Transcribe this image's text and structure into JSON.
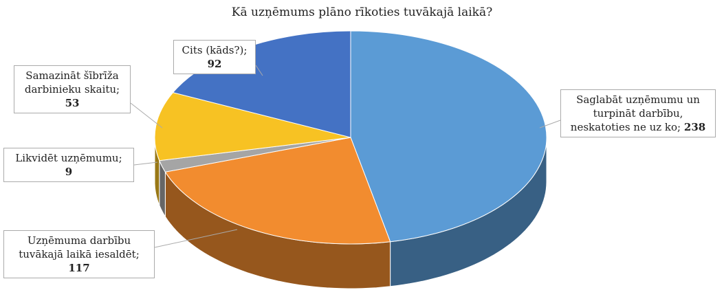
{
  "chart_data": {
    "type": "pie",
    "title": "Kā uzņēmums plāno rīkoties tuvākajā laikā?",
    "categories": [
      "Saglabāt uzņēmumu un turpināt darbību, neskatoties ne uz ko;",
      "Uzņēmuma darbību tuvākajā laikā iesaldēt;",
      "Likvidēt uzņēmumu;",
      "Samazināt šībrīža darbinieku skaitu;",
      "Cits (kāds?);"
    ],
    "values": [
      238,
      117,
      9,
      53,
      92
    ],
    "colors": [
      "#5b9bd5",
      "#f28c2f",
      "#a5a5a5",
      "#f7c223",
      "#4472c4"
    ]
  }
}
